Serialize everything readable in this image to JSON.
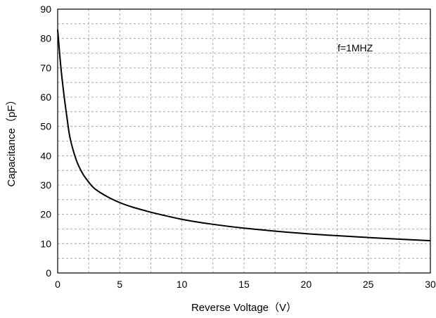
{
  "chart_data": {
    "type": "line",
    "xlabel": "Reverse Voltage（V）",
    "ylabel": "Capacitance（pF）",
    "annotation": "f=1MHZ",
    "xlim": [
      0,
      30
    ],
    "ylim": [
      0,
      90
    ],
    "xticks": [
      0,
      5,
      10,
      15,
      20,
      25,
      30
    ],
    "yticks": [
      0,
      10,
      20,
      30,
      40,
      50,
      60,
      70,
      80,
      90
    ],
    "x_minor_step": 2.5,
    "y_minor_step": 5,
    "grid": true,
    "series": [
      {
        "x": [
          0,
          0.25,
          0.5,
          0.75,
          1,
          1.5,
          2,
          2.5,
          3,
          4,
          5,
          6,
          7,
          8,
          10,
          12,
          15,
          20,
          25,
          30
        ],
        "y": [
          83,
          70.5,
          61,
          53,
          46,
          38.5,
          34,
          31,
          28.7,
          26,
          24,
          22.5,
          21.3,
          20.2,
          18.3,
          16.9,
          15.3,
          13.4,
          12.1,
          11
        ]
      }
    ]
  }
}
